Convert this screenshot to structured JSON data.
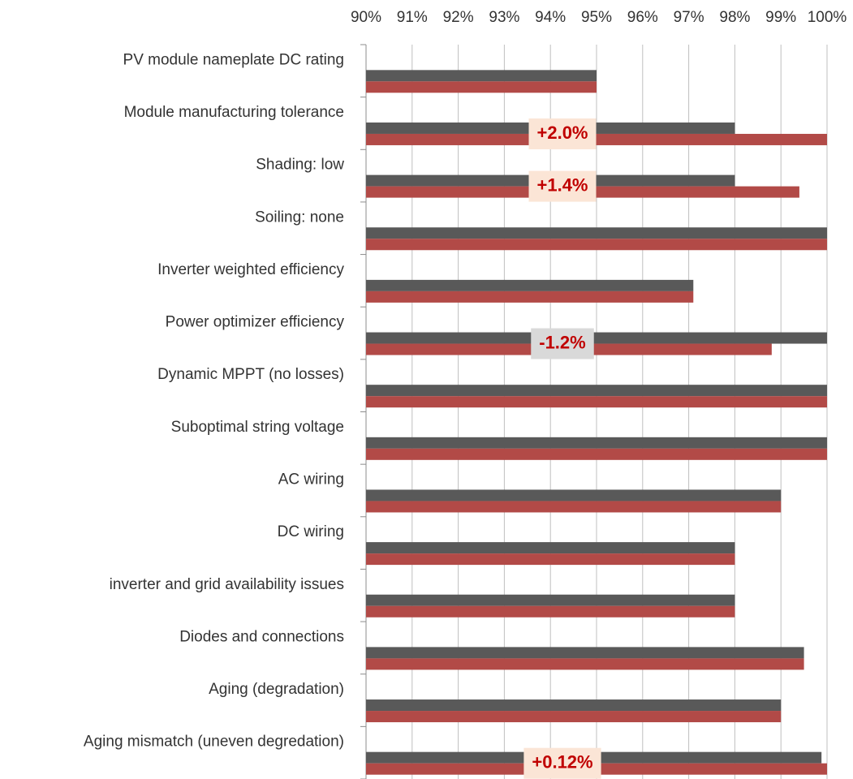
{
  "chart_data": {
    "type": "hbar",
    "categories": [
      "PV module nameplate DC rating",
      "Module manufacturing tolerance",
      "Shading: low",
      "Soiling: none",
      "Inverter weighted efficiency",
      "Power optimizer efficiency",
      "Dynamic MPPT (no losses)",
      "Suboptimal string voltage",
      "AC wiring",
      "DC wiring",
      "inverter and grid availability issues",
      "Diodes and connections",
      "Aging (degradation)",
      "Aging mismatch (uneven degredation)"
    ],
    "series": [
      {
        "color": "#595959",
        "values": [
          95,
          98,
          98,
          100,
          97.1,
          100,
          100,
          100,
          99,
          98,
          98,
          99.5,
          99,
          99.88
        ]
      },
      {
        "color": "#b24a47",
        "values": [
          95,
          100,
          99.4,
          100,
          97.1,
          98.8,
          100,
          100,
          99,
          98,
          98,
          99.5,
          99,
          100
        ]
      }
    ],
    "xlim": [
      90,
      100
    ],
    "xticks": [
      {
        "value": 90,
        "label": "90%"
      },
      {
        "value": 91,
        "label": "91%"
      },
      {
        "value": 92,
        "label": "92%"
      },
      {
        "value": 93,
        "label": "93%"
      },
      {
        "value": 94,
        "label": "94%"
      },
      {
        "value": 95,
        "label": "95%"
      },
      {
        "value": 96,
        "label": "96%"
      },
      {
        "value": 97,
        "label": "97%"
      },
      {
        "value": 98,
        "label": "98%"
      },
      {
        "value": 99,
        "label": "99%"
      },
      {
        "value": 100,
        "label": "100%"
      }
    ],
    "grid": true,
    "annotations": [
      {
        "text": "+2.0%",
        "category": "Module manufacturing tolerance",
        "color": "#fbe5d6"
      },
      {
        "text": "+1.4%",
        "category": "Shading: low",
        "color": "#fbe5d6"
      },
      {
        "text": "-1.2%",
        "category": "Power optimizer efficiency",
        "color": "#d9d9d9"
      },
      {
        "text": "+0.12%",
        "category": "Aging mismatch (uneven degredation)",
        "color": "#fbe5d6"
      }
    ]
  }
}
